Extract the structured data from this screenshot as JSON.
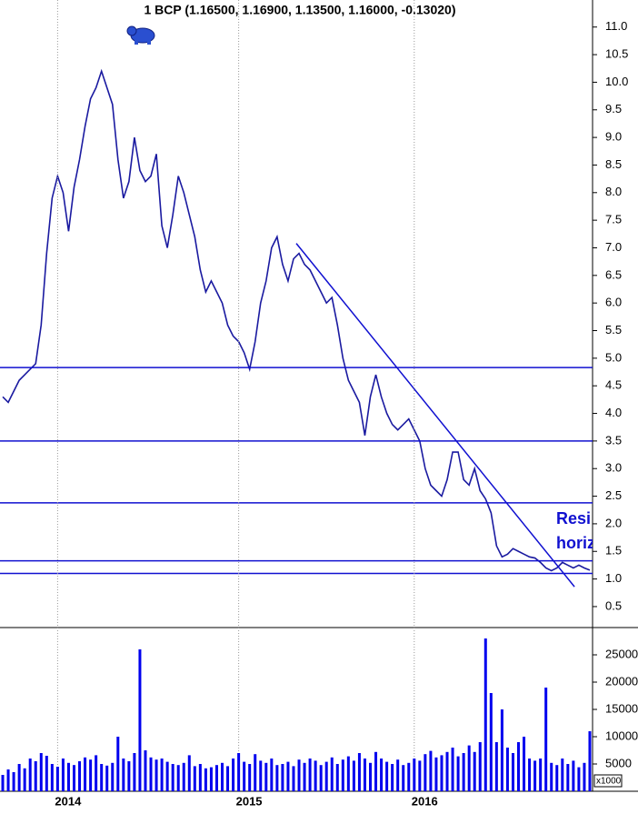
{
  "chart_data": [
    {
      "type": "line",
      "title": "1 BCP (1.16500, 1.16900, 1.13500, 1.16000, -0.13020)",
      "color": "#1a1aa0",
      "categories": [
        null,
        null,
        null,
        null,
        null,
        null,
        null,
        null,
        null,
        null,
        "2014",
        null,
        null,
        null,
        null,
        null,
        null,
        null,
        null,
        null,
        null,
        null,
        null,
        null,
        null,
        null,
        null,
        null,
        null,
        null,
        null,
        null,
        null,
        null,
        null,
        null,
        null,
        null,
        null,
        null,
        null,
        null,
        null,
        "2015",
        null,
        null,
        null,
        null,
        null,
        null,
        null,
        null,
        null,
        null,
        null,
        null,
        null,
        null,
        null,
        null,
        null,
        null,
        null,
        null,
        null,
        null,
        null,
        null,
        null,
        null,
        null,
        null,
        null,
        null,
        null,
        "2016",
        null,
        null,
        null,
        null,
        null,
        null,
        null,
        null,
        null,
        null,
        null,
        null,
        null,
        null,
        null,
        null,
        null,
        null,
        null,
        null,
        null,
        null,
        null,
        null,
        null,
        null,
        null,
        null,
        null,
        null,
        null,
        null
      ],
      "values": [
        4.3,
        4.2,
        4.4,
        4.6,
        4.7,
        4.8,
        4.9,
        5.6,
        6.9,
        7.9,
        8.3,
        8.0,
        7.3,
        8.1,
        8.6,
        9.2,
        9.7,
        9.9,
        10.2,
        9.9,
        9.6,
        8.6,
        7.9,
        8.2,
        9.0,
        8.4,
        8.2,
        8.3,
        8.7,
        7.4,
        7.0,
        7.6,
        8.3,
        8.0,
        7.6,
        7.2,
        6.6,
        6.2,
        6.4,
        6.2,
        6.0,
        5.6,
        5.4,
        5.3,
        5.1,
        4.8,
        5.3,
        6.0,
        6.4,
        7.0,
        7.2,
        6.7,
        6.4,
        6.8,
        6.9,
        6.7,
        6.6,
        6.4,
        6.2,
        6.0,
        6.1,
        5.6,
        5.0,
        4.6,
        4.4,
        4.2,
        3.6,
        4.3,
        4.7,
        4.3,
        4.0,
        3.8,
        3.7,
        3.8,
        3.9,
        3.7,
        3.5,
        3.0,
        2.7,
        2.6,
        2.5,
        2.8,
        3.3,
        3.3,
        2.8,
        2.7,
        3.0,
        2.6,
        2.45,
        2.2,
        1.6,
        1.4,
        1.45,
        1.55,
        1.5,
        1.45,
        1.4,
        1.38,
        1.3,
        1.2,
        1.15,
        1.2,
        1.3,
        1.25,
        1.2,
        1.25,
        1.2,
        1.16
      ],
      "ylim": [
        0.12,
        11.49
      ],
      "yticks": [
        0.5,
        {
          "value": 1,
          "label": "1.0"
        },
        1.5,
        {
          "value": 2,
          "label": "2.0"
        },
        2.5,
        {
          "value": 3,
          "label": "3.0"
        },
        3.5,
        {
          "value": 4,
          "label": "4.0"
        },
        4.5,
        {
          "value": 5,
          "label": "5.0"
        },
        5.5,
        {
          "value": 6,
          "label": "6.0"
        },
        6.5,
        {
          "value": 7,
          "label": "7.0"
        },
        7.5,
        {
          "value": 8,
          "label": "8.0"
        },
        8.5,
        {
          "value": 9,
          "label": "9.0"
        },
        9.5,
        {
          "value": 10,
          "label": "10.0"
        },
        10.5,
        {
          "value": 11,
          "label": "11.0"
        }
      ],
      "hlines": [
        4.83,
        3.5,
        2.38,
        1.33,
        1.1
      ],
      "line_color": "#1010d0",
      "trendline": {
        "x": [
          53.5,
          104.2
        ],
        "values": [
          7.08,
          0.86
        ]
      },
      "annotations": [
        "Resi",
        "horiz"
      ]
    },
    {
      "type": "bar",
      "color": "#0000ee",
      "unit_label": "x1000",
      "categories": [
        null,
        null,
        null,
        null,
        null,
        null,
        null,
        null,
        null,
        null,
        "2014",
        null,
        null,
        null,
        null,
        null,
        null,
        null,
        null,
        null,
        null,
        null,
        null,
        null,
        null,
        null,
        null,
        null,
        null,
        null,
        null,
        null,
        null,
        null,
        null,
        null,
        null,
        null,
        null,
        null,
        null,
        null,
        null,
        "2015",
        null,
        null,
        null,
        null,
        null,
        null,
        null,
        null,
        null,
        null,
        null,
        null,
        null,
        null,
        null,
        null,
        null,
        null,
        null,
        null,
        null,
        null,
        null,
        null,
        null,
        null,
        null,
        null,
        null,
        null,
        null,
        "2016",
        null,
        null,
        null,
        null,
        null,
        null,
        null,
        null,
        null,
        null,
        null,
        null,
        null,
        null,
        null,
        null,
        null,
        null,
        null,
        null,
        null,
        null,
        null,
        null,
        null,
        null,
        null,
        null,
        null,
        null,
        null,
        null
      ],
      "values": [
        3000,
        4000,
        3500,
        5000,
        4200,
        6000,
        5500,
        7000,
        6500,
        5000,
        4500,
        6000,
        5200,
        4800,
        5500,
        6200,
        5800,
        6600,
        5000,
        4700,
        5200,
        10000,
        6000,
        5500,
        7000,
        26000,
        7500,
        6200,
        5800,
        6000,
        5400,
        5000,
        4800,
        5200,
        6600,
        4600,
        5000,
        4200,
        4400,
        4800,
        5200,
        4600,
        6000,
        7000,
        5400,
        5000,
        6800,
        5600,
        5200,
        6000,
        4800,
        5000,
        5400,
        4600,
        5800,
        5200,
        6000,
        5600,
        4800,
        5400,
        6200,
        5000,
        5800,
        6400,
        5600,
        7000,
        6000,
        5200,
        7200,
        6000,
        5400,
        5000,
        5800,
        4800,
        5200,
        6000,
        5600,
        6800,
        7400,
        6200,
        6600,
        7200,
        8000,
        6400,
        7000,
        8400,
        7200,
        9000,
        28000,
        18000,
        9000,
        15000,
        8000,
        7000,
        9000,
        10000,
        6000,
        5600,
        6000,
        19000,
        5200,
        4800,
        6000,
        5000,
        5600,
        4400,
        5200,
        11000
      ],
      "ylim": [
        0,
        30000
      ],
      "yticks": [
        5000,
        10000,
        15000,
        20000,
        25000
      ]
    }
  ]
}
